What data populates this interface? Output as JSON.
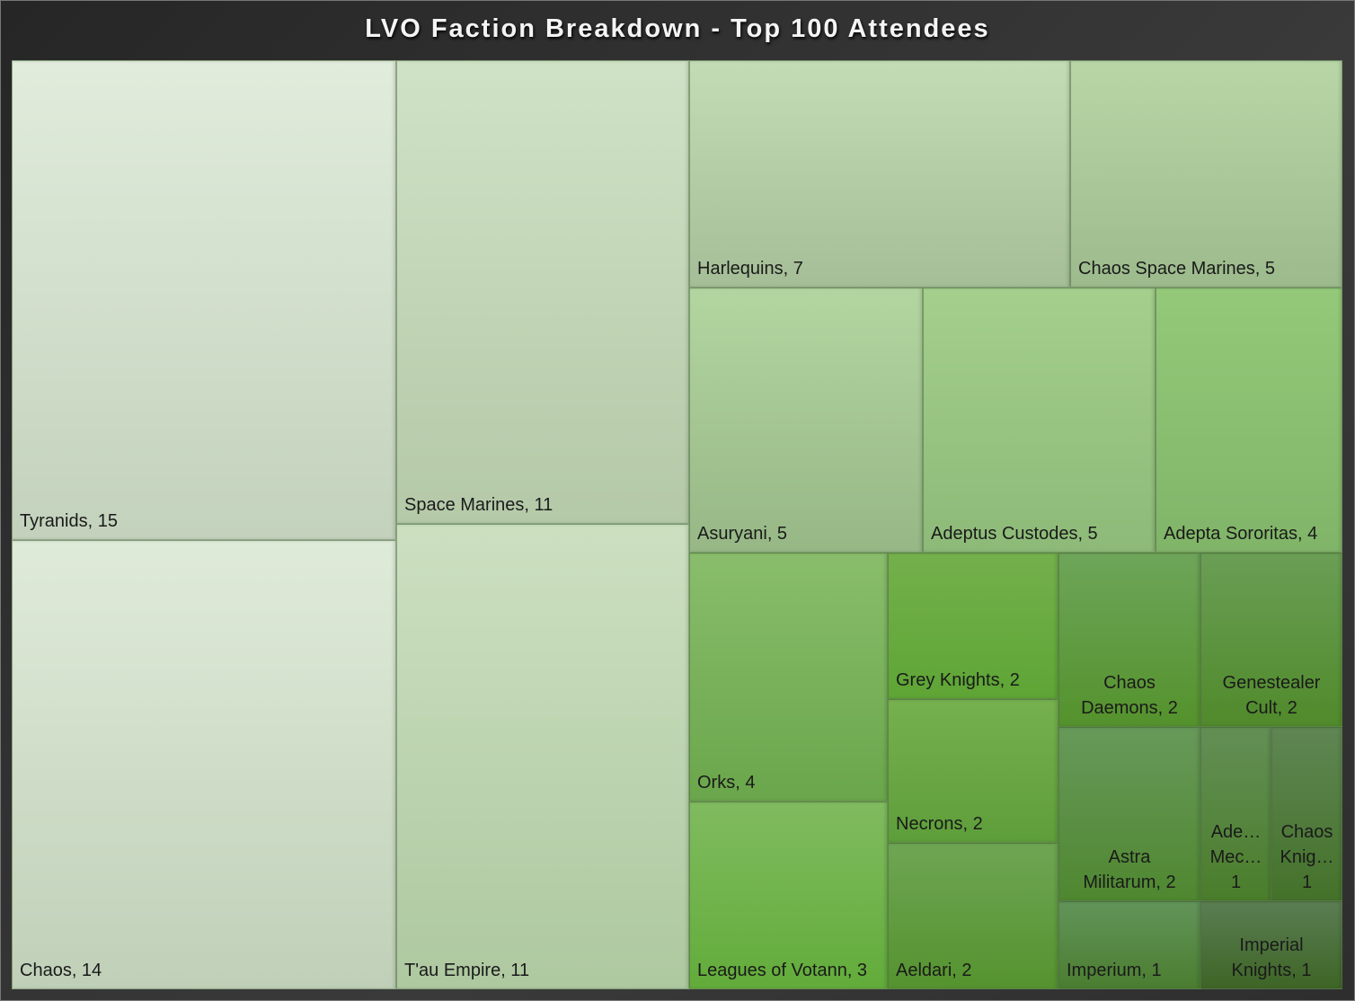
{
  "chart_data": {
    "type": "treemap",
    "title": "LVO Faction Breakdown - Top 100 Attendees",
    "items": [
      {
        "label": "Tyranids, 15",
        "name": "Tyranids",
        "value": 15,
        "colors": [
          "#e1ecdc",
          "#c3d2bc"
        ]
      },
      {
        "label": "Chaos, 14",
        "name": "Chaos",
        "value": 14,
        "colors": [
          "#dfebd9",
          "#c0d0b8"
        ]
      },
      {
        "label": "Space Marines, 11",
        "name": "Space Marines",
        "value": 11,
        "colors": [
          "#d0e2c6",
          "#b4c9a8"
        ]
      },
      {
        "label": "T'au Empire, 11",
        "name": "T'au Empire",
        "value": 11,
        "colors": [
          "#cce0c1",
          "#aec8a0"
        ]
      },
      {
        "label": "Harlequins, 7",
        "name": "Harlequins",
        "value": 7,
        "colors": [
          "#c4dcb6",
          "#a5be97"
        ]
      },
      {
        "label": "Chaos Space Marines, 5",
        "name": "Chaos Space Marines",
        "value": 5,
        "colors": [
          "#b8d6a6",
          "#9cba8c"
        ]
      },
      {
        "label": "Asuryani, 5",
        "name": "Asuryani",
        "value": 5,
        "colors": [
          "#b3d5a0",
          "#97b886"
        ]
      },
      {
        "label": "Adeptus Custodes, 5",
        "name": "Adeptus Custodes",
        "value": 5,
        "colors": [
          "#a4cf8c",
          "#8dba78"
        ]
      },
      {
        "label": "Adepta Sororitas, 4",
        "name": "Adepta Sororitas",
        "value": 4,
        "colors": [
          "#94c979",
          "#80b468"
        ]
      },
      {
        "label": "Orks, 4",
        "name": "Orks",
        "value": 4,
        "colors": [
          "#89bd6b",
          "#6aa64b"
        ]
      },
      {
        "label": "Leagues of Votann, 3",
        "name": "Leagues of Votann",
        "value": 3,
        "colors": [
          "#80bb5f",
          "#62ac3a"
        ]
      },
      {
        "label": "Grey Knights, 2",
        "name": "Grey Knights",
        "value": 2,
        "colors": [
          "#74b04c",
          "#5ea535"
        ]
      },
      {
        "label": "Necrons, 2",
        "name": "Necrons",
        "value": 2,
        "colors": [
          "#76b04f",
          "#5e9e3a"
        ]
      },
      {
        "label": "Aeldari, 2",
        "name": "Aeldari",
        "value": 2,
        "colors": [
          "#6ea553",
          "#55932f"
        ]
      },
      {
        "label": "Chaos\nDaemons, 2",
        "name": "Chaos Daemons",
        "value": 2,
        "colors": [
          "#6ea55a",
          "#54922c"
        ]
      },
      {
        "label": "Genestealer\nCult, 2",
        "name": "Genestealer Cult",
        "value": 2,
        "colors": [
          "#6a9e55",
          "#508a2b"
        ]
      },
      {
        "label": "Astra\nMilitarum, 2",
        "name": "Astra Militarum",
        "value": 2,
        "colors": [
          "#67995a",
          "#4f8730"
        ]
      },
      {
        "label": "Ade…\nMec…\n1",
        "name": "Ade… Mec…",
        "value": 1,
        "colors": [
          "#638f55",
          "#4a7d2b"
        ]
      },
      {
        "label": "Chaos\nKnig…\n1",
        "name": "Chaos Knig…",
        "value": 1,
        "colors": [
          "#5f8653",
          "#44722a"
        ]
      },
      {
        "label": "Imperium, 1",
        "name": "Imperium",
        "value": 1,
        "colors": [
          "#62945a",
          "#4b7d30"
        ]
      },
      {
        "label": "Imperial\nKnights, 1",
        "name": "Imperial Knights",
        "value": 1,
        "colors": [
          "#5a7d52",
          "#3e6526"
        ]
      }
    ]
  }
}
